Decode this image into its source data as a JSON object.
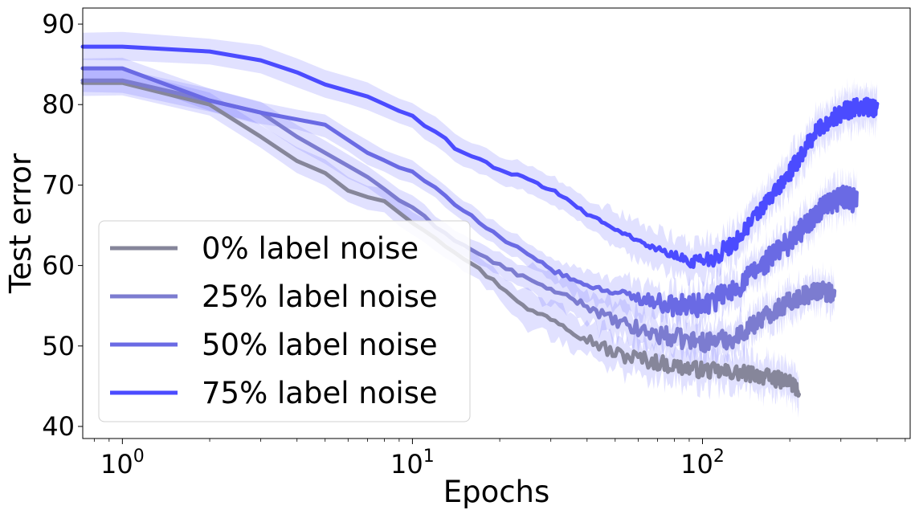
{
  "chart_data": {
    "type": "line",
    "title": "",
    "xlabel": "Epochs",
    "ylabel": "Test error",
    "xscale": "log",
    "xlim": [
      0.73,
      520
    ],
    "ylim": [
      38.5,
      92
    ],
    "x_ticks": [
      {
        "value": 1,
        "base": "10",
        "exp": "0"
      },
      {
        "value": 10,
        "base": "10",
        "exp": "1"
      },
      {
        "value": 100,
        "base": "10",
        "exp": "2"
      }
    ],
    "y_ticks": [
      40,
      50,
      60,
      70,
      80,
      90
    ],
    "grid": false,
    "legend_position": "lower-left",
    "band_color": "#6b6bff",
    "series": [
      {
        "name": "0% label noise",
        "color": "#86869a",
        "band_width": 1.3,
        "noise": 1.0,
        "noise_start": 20,
        "points": [
          [
            0.73,
            82.7
          ],
          [
            1,
            82.7
          ],
          [
            1.5,
            81.5
          ],
          [
            2,
            80.0
          ],
          [
            2.5,
            78.0
          ],
          [
            3,
            76.0
          ],
          [
            4,
            73.0
          ],
          [
            5,
            71.5
          ],
          [
            6,
            69.3
          ],
          [
            7,
            68.5
          ],
          [
            8,
            68.0
          ],
          [
            10,
            65.5
          ],
          [
            12,
            63.5
          ],
          [
            15,
            61.0
          ],
          [
            20,
            57.5
          ],
          [
            25,
            54.5
          ],
          [
            30,
            53.5
          ],
          [
            40,
            51.0
          ],
          [
            50,
            49.0
          ],
          [
            60,
            48.5
          ],
          [
            80,
            47.5
          ],
          [
            100,
            47.0
          ],
          [
            150,
            46.5
          ],
          [
            200,
            45.5
          ],
          [
            215,
            44.5
          ]
        ]
      },
      {
        "name": "25% label noise",
        "color": "#7c7cd0",
        "band_width": 1.2,
        "noise": 1.2,
        "noise_start": 25,
        "points": [
          [
            0.73,
            83.0
          ],
          [
            1,
            83.0
          ],
          [
            1.5,
            81.5
          ],
          [
            2,
            80.5
          ],
          [
            3,
            79.0
          ],
          [
            4,
            76.0
          ],
          [
            5,
            74.0
          ],
          [
            7,
            71.0
          ],
          [
            10,
            67.0
          ],
          [
            15,
            62.5
          ],
          [
            20,
            60.0
          ],
          [
            30,
            57.0
          ],
          [
            40,
            55.0
          ],
          [
            50,
            53.0
          ],
          [
            60,
            52.0
          ],
          [
            80,
            51.0
          ],
          [
            100,
            50.5
          ],
          [
            130,
            51.0
          ],
          [
            160,
            53.5
          ],
          [
            200,
            55.5
          ],
          [
            250,
            57.0
          ],
          [
            285,
            56.5
          ]
        ]
      },
      {
        "name": "50% label noise",
        "color": "#6a6ae4",
        "band_width": 1.2,
        "noise": 1.5,
        "noise_start": 35,
        "points": [
          [
            0.73,
            84.5
          ],
          [
            1,
            84.5
          ],
          [
            1.5,
            82.5
          ],
          [
            2,
            80.5
          ],
          [
            3,
            79.0
          ],
          [
            5,
            77.5
          ],
          [
            7,
            74.0
          ],
          [
            10,
            71.5
          ],
          [
            15,
            67.0
          ],
          [
            20,
            63.5
          ],
          [
            30,
            59.5
          ],
          [
            40,
            57.5
          ],
          [
            60,
            56.0
          ],
          [
            80,
            55.0
          ],
          [
            100,
            55.0
          ],
          [
            130,
            57.0
          ],
          [
            160,
            60.0
          ],
          [
            200,
            63.0
          ],
          [
            250,
            66.5
          ],
          [
            300,
            68.5
          ],
          [
            340,
            68.0
          ]
        ]
      },
      {
        "name": "75% label noise",
        "color": "#4b4bff",
        "band_width": 1.5,
        "noise": 1.1,
        "noise_start": 45,
        "points": [
          [
            0.73,
            87.2
          ],
          [
            1,
            87.2
          ],
          [
            2,
            86.6
          ],
          [
            3,
            85.5
          ],
          [
            4,
            84.0
          ],
          [
            5,
            82.5
          ],
          [
            7,
            81.0
          ],
          [
            10,
            78.5
          ],
          [
            15,
            74.0
          ],
          [
            20,
            72.0
          ],
          [
            30,
            69.5
          ],
          [
            40,
            66.5
          ],
          [
            50,
            64.5
          ],
          [
            70,
            62.0
          ],
          [
            90,
            60.5
          ],
          [
            110,
            61.0
          ],
          [
            130,
            63.0
          ],
          [
            160,
            67.0
          ],
          [
            200,
            71.5
          ],
          [
            250,
            77.0
          ],
          [
            300,
            79.0
          ],
          [
            350,
            79.8
          ],
          [
            400,
            79.5
          ]
        ]
      }
    ]
  }
}
